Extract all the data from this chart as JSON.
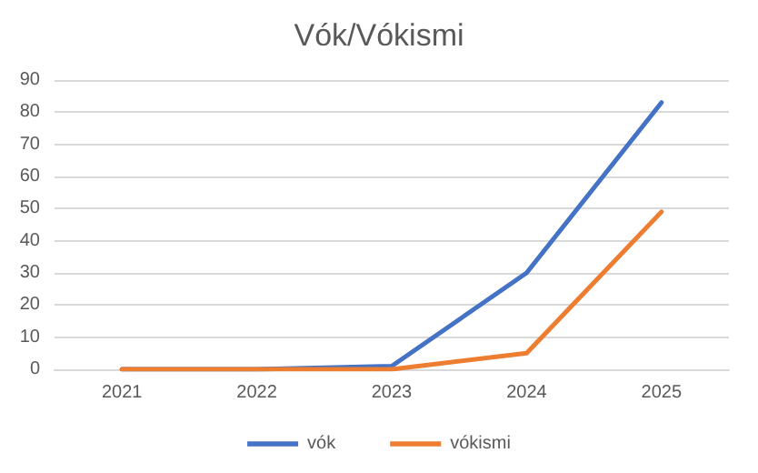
{
  "chart_data": {
    "type": "line",
    "title": "Vók/Vókismi",
    "categories": [
      "2021",
      "2022",
      "2023",
      "2024",
      "2025"
    ],
    "series": [
      {
        "name": "vók",
        "color": "#4472c4",
        "values": [
          0,
          0,
          1,
          30,
          83
        ]
      },
      {
        "name": "vókismi",
        "color": "#ed7d31",
        "values": [
          0,
          0,
          0,
          5,
          49
        ]
      }
    ],
    "ylim": [
      0,
      90
    ],
    "yticks": [
      0,
      10,
      20,
      30,
      40,
      50,
      60,
      70,
      80,
      90
    ],
    "grid": "y",
    "legend": "bottom",
    "marker": "none",
    "line_style": "solid"
  }
}
